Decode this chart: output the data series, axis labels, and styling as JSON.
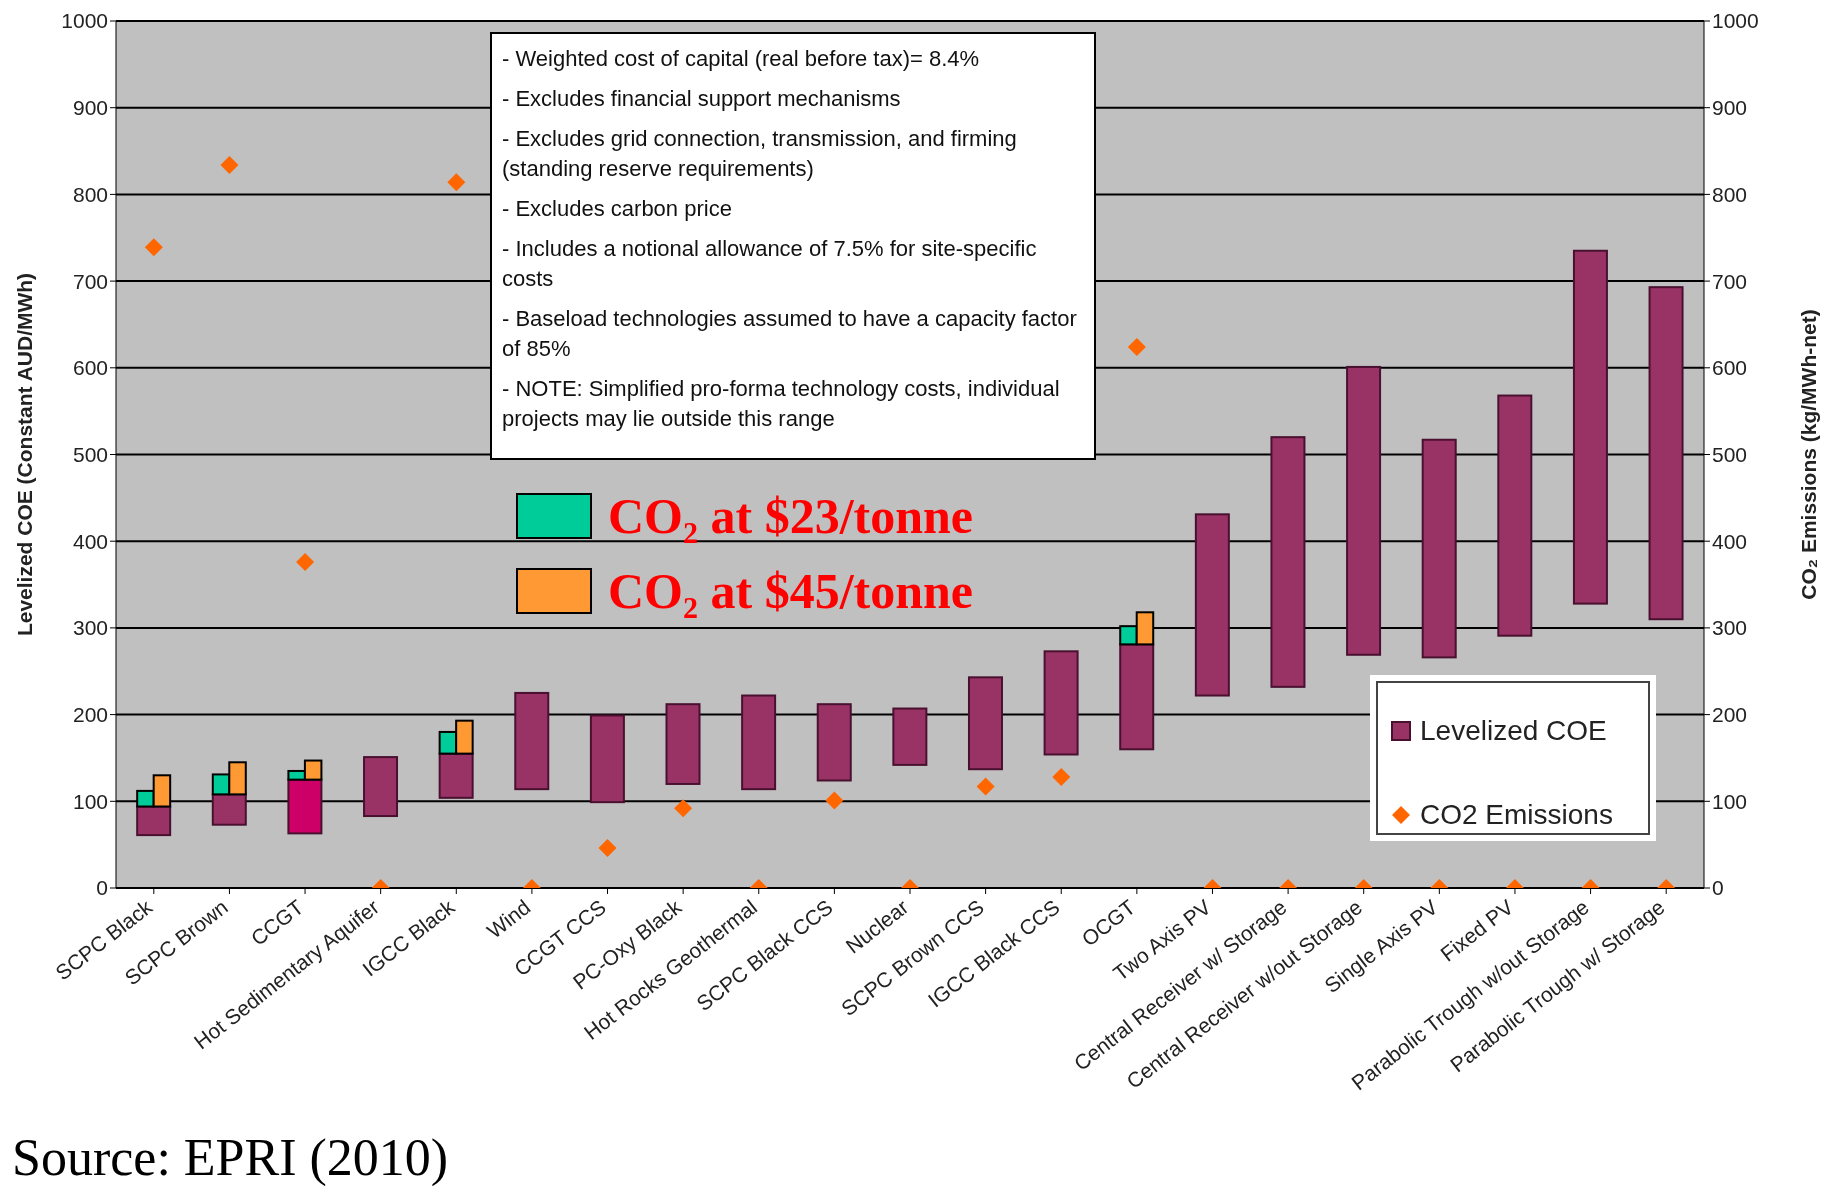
{
  "chart_data": {
    "type": "bar",
    "categories": [
      "SCPC Black",
      "SCPC Brown",
      "CCGT",
      "Hot Sedimentary Aquifer",
      "IGCC Black",
      "Wind",
      "CCGT CCS",
      "PC-Oxy Black",
      "Hot Rocks Geothermal",
      "SCPC Black CCS",
      "Nuclear",
      "SCPC Brown CCS",
      "IGCC Black CCS",
      "OCGT",
      "Two Axis PV",
      "Central Receiver w/ Storage",
      "Central Receiver w/out Storage",
      "Single Axis PV",
      "Fixed PV",
      "Parabolic Trough w/out Storage",
      "Parabolic Trough w/ Storage"
    ],
    "ylabel": "Levelized COE (Constant AUD/MWh)",
    "y2label": "CO₂ Emissions (kg/MWh-net)",
    "ylim": [
      0,
      1000
    ],
    "yticks": [
      0,
      100,
      200,
      300,
      400,
      500,
      600,
      700,
      800,
      900,
      1000
    ],
    "y2lim": [
      0,
      1000
    ],
    "y2ticks": [
      0,
      100,
      200,
      300,
      400,
      500,
      600,
      700,
      800,
      900,
      1000
    ],
    "grid": "y",
    "legend": "bottom right",
    "series": [
      {
        "name": "Levelized COE",
        "type": "bar",
        "color": "#993366",
        "colors": [
          "#993366",
          "#993366",
          "#cc0066",
          "#993366",
          "#993366",
          "#993366",
          "#993366",
          "#993366",
          "#993366",
          "#993366",
          "#993366",
          "#993366",
          "#993366",
          "#993366",
          "#993366",
          "#993366",
          "#993366",
          "#993366",
          "#993366",
          "#993366",
          "#993366"
        ],
        "base": [
          61,
          73,
          63,
          83,
          104,
          114,
          99,
          120,
          114,
          124,
          142,
          137,
          154,
          160,
          222,
          232,
          269,
          266,
          291,
          328,
          310
        ],
        "values": [
          33,
          35,
          62,
          68,
          51,
          111,
          100,
          92,
          108,
          88,
          65,
          106,
          119,
          121,
          209,
          288,
          332,
          251,
          277,
          407,
          383
        ]
      },
      {
        "name": "CO₂ at $23/tonne",
        "type": "bar",
        "color": "#00cc99",
        "base": [
          94,
          108,
          125,
          null,
          155,
          null,
          null,
          null,
          null,
          null,
          null,
          null,
          null,
          281,
          null,
          null,
          null,
          null,
          null,
          null,
          null
        ],
        "values": [
          18,
          23,
          10,
          null,
          25,
          null,
          null,
          null,
          null,
          null,
          null,
          null,
          null,
          21,
          null,
          null,
          null,
          null,
          null,
          null,
          null
        ]
      },
      {
        "name": "CO₂ at $45/tonne",
        "type": "bar",
        "color": "#ff9933",
        "base": [
          94,
          108,
          125,
          null,
          155,
          null,
          null,
          null,
          null,
          null,
          null,
          null,
          null,
          281,
          null,
          null,
          null,
          null,
          null,
          null,
          null
        ],
        "values": [
          36,
          37,
          22,
          null,
          38,
          null,
          null,
          null,
          null,
          null,
          null,
          null,
          null,
          37,
          null,
          null,
          null,
          null,
          null,
          null,
          null
        ]
      },
      {
        "name": "CO2 Emissions",
        "type": "scatter",
        "axis": "y2",
        "marker": "diamond",
        "color": "#ff6600",
        "values": [
          739,
          834,
          376,
          0,
          814,
          0,
          46,
          92,
          0,
          101,
          0,
          117,
          128,
          624,
          0,
          0,
          0,
          0,
          0,
          0,
          0
        ]
      }
    ],
    "annotations": [
      "- Weighted cost of capital (real before tax)= 8.4%",
      "- Excludes financial support mechanisms",
      "- Excludes grid connection, transmission, and firming (standing reserve requirements)",
      "- Excludes carbon price",
      "- Includes a notional allowance of 7.5% for site-specific costs",
      "- Baseload technologies assumed to have a capacity factor of 85%",
      "- NOTE: Simplified pro-forma technology costs, individual projects may lie outside this range",
      "Source: EPRI (2010)"
    ]
  }
}
